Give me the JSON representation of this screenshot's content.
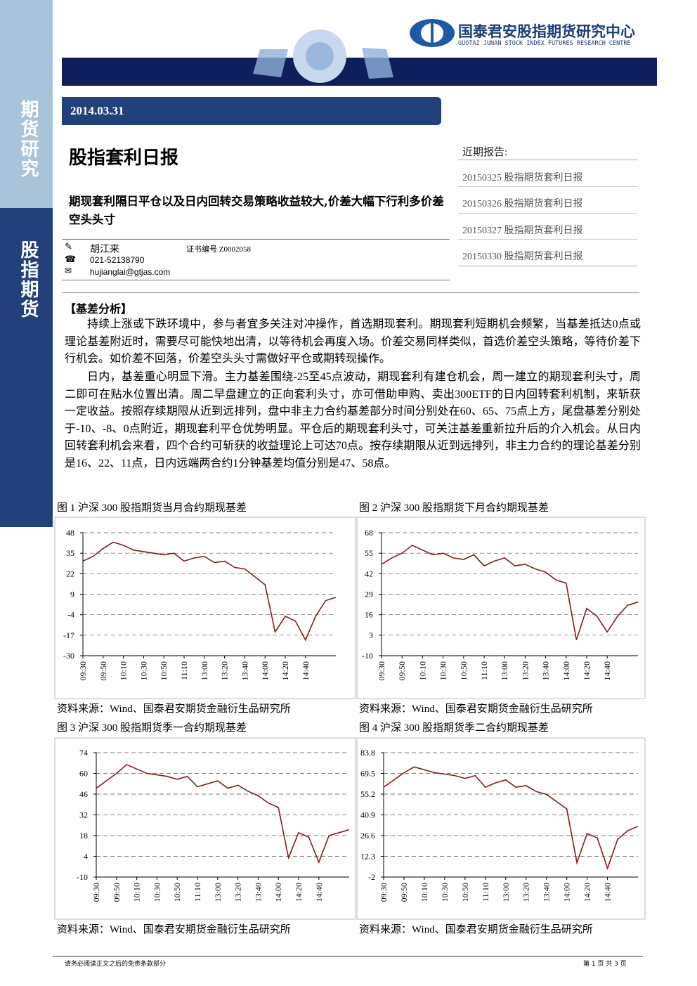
{
  "header": {
    "org": "国泰君安股指期货研究中心",
    "org_en": "GUOTAI JUNAN STOCK INDEX FUTURES RESEARCH CENTRE"
  },
  "sidebar": [
    "期货研究",
    "股指期货"
  ],
  "date": "2014.03.31",
  "title": "股指套利日报",
  "subtitle": "期现套利隔日平仓以及日内回转交易策略收益较大,价差大幅下行利多价差空头头寸",
  "author": {
    "name": "胡江来",
    "cert": "证书编号 Z0002058",
    "phone": "021-52138790",
    "email": "hujianglai@gtjas.com"
  },
  "recent": {
    "label": "近期报告:",
    "items": [
      "20150325 股指期货套利日报",
      "20150326 股指期货套利日报",
      "20150327 股指期货套利日报",
      "20150330 股指期货套利日报"
    ]
  },
  "section": "【基差分析】",
  "paragraphs": [
    "持续上涨或下跌环境中，参与者宜多关注对冲操作，首选期现套利。期现套利短期机会频繁，当基差抵达0点或理论基差附近时，需要尽可能快地出清，以等待机会再度入场。价差交易同样类似，首选价差空头策略，等待价差下行机会。如价差不回落，价差空头头寸需做好平仓或期转现操作。",
    "日内，基差重心明显下滑。主力基差围绕-25至45点波动，期现套利有建仓机会，周一建立的期现套利头寸，周二即可在贴水位置出清。周二早盘建立的正向套利头寸，亦可借助申购、卖出300ETF的日内回转套利机制，来斩获一定收益。按照存续期限从近到远排列，盘中非主力合约基差部分时间分别处在60、65、75点上方，尾盘基差分别处于-10、-8、0点附近，期现套利平仓优势明显。平仓后的期现套利头寸，可关注基差重新拉升后的介入机会。从日内回转套利机会来看，四个合约可斩获的收益理论上可达70点。按存续期限从近到远排列，非主力合约的理论基差分别是16、22、11点，日内远端两合约1分钟基差均值分别是47、58点。"
  ],
  "chart_data": [
    {
      "type": "line",
      "title": "图 1 沪深 300 股指期货当月合约期现基差",
      "source": "资料来源：Wind、国泰君安期货金融衍生品研究所",
      "categories": [
        "09:30",
        null,
        "09:50",
        null,
        "10:10",
        null,
        "10:30",
        null,
        "10:50",
        null,
        "11:10",
        null,
        "13:00",
        null,
        "13:20",
        null,
        "13:40",
        null,
        "14:00",
        null,
        "14:20",
        null,
        "14:40",
        null,
        null,
        null
      ],
      "series": [
        {
          "color": "#8b1a1a",
          "values": [
            30,
            33,
            38,
            42,
            40,
            37,
            36,
            35,
            34,
            35,
            30,
            32,
            33,
            29,
            30,
            26,
            25,
            20,
            15,
            -15,
            -5,
            -8,
            -20,
            -5,
            5,
            7
          ]
        }
      ],
      "ylim": [
        -30,
        48
      ],
      "yticks": [
        -30,
        -17,
        -4,
        9,
        22,
        35,
        48
      ],
      "grid": true
    },
    {
      "type": "line",
      "title": "图 2 沪深 300 股指期货下月合约期现基差",
      "source": "资料来源：Wind、国泰君安期货金融衍生品研究所",
      "categories": [
        "09:30",
        null,
        "09:50",
        null,
        "10:10",
        null,
        "10:30",
        null,
        "10:50",
        null,
        "11:10",
        null,
        "13:00",
        null,
        "13:20",
        null,
        "13:40",
        null,
        "14:00",
        null,
        "14:20",
        null,
        "14:40",
        null,
        null,
        null
      ],
      "series": [
        {
          "color": "#8b1a1a",
          "values": [
            48,
            52,
            55,
            60,
            57,
            54,
            55,
            52,
            51,
            54,
            47,
            50,
            52,
            47,
            48,
            45,
            43,
            38,
            36,
            0,
            20,
            15,
            5,
            15,
            22,
            24
          ]
        }
      ],
      "ylim": [
        -10,
        68
      ],
      "yticks": [
        -10,
        3,
        16,
        29,
        42,
        55,
        68
      ],
      "grid": true
    },
    {
      "type": "line",
      "title": "图 3 沪深 300 股指期货季一合约期现基差",
      "source": "资料来源：Wind、国泰君安期货金融衍生品研究所",
      "categories": [
        "09:30",
        null,
        "09:50",
        null,
        "10:10",
        null,
        "10:30",
        null,
        "10:50",
        null,
        "11:10",
        null,
        "13:00",
        null,
        "13:20",
        null,
        "13:40",
        null,
        "14:00",
        null,
        "14:20",
        null,
        "14:40",
        null,
        null,
        null
      ],
      "series": [
        {
          "color": "#8b1a1a",
          "values": [
            50,
            55,
            60,
            66,
            63,
            60,
            59,
            58,
            56,
            58,
            51,
            53,
            55,
            50,
            52,
            48,
            45,
            40,
            37,
            3,
            20,
            17,
            0,
            18,
            20,
            22
          ]
        }
      ],
      "ylim": [
        -10,
        74
      ],
      "yticks": [
        -10,
        4,
        18,
        32,
        46,
        60,
        74
      ],
      "grid": true
    },
    {
      "type": "line",
      "title": "图 4 沪深 300 股指期货季二合约期现基差",
      "source": "资料来源：Wind、国泰君安期货金融衍生品研究所",
      "categories": [
        "09:30",
        null,
        "09:50",
        null,
        "10:10",
        null,
        "10:30",
        null,
        "10:50",
        null,
        "11:10",
        null,
        "13:00",
        null,
        "13:20",
        null,
        "13:40",
        null,
        "14:00",
        null,
        "14:20",
        null,
        "14:40",
        null,
        null,
        null
      ],
      "series": [
        {
          "color": "#8b1a1a",
          "values": [
            60,
            65,
            70,
            74,
            72,
            70,
            69,
            68,
            66,
            68,
            60,
            63,
            65,
            60,
            61,
            57,
            55,
            50,
            45,
            8,
            28,
            25,
            4,
            24,
            30,
            33
          ]
        }
      ],
      "ylim": [
        -2,
        83.8
      ],
      "yticks": [
        -2,
        12.3,
        26.6,
        40.9,
        55.2,
        69.5,
        83.8
      ],
      "grid": true
    }
  ],
  "footer": {
    "disclaimer": "请务必阅读正文之后的免责条款部分",
    "page": "第 1 页 共 3 页"
  }
}
